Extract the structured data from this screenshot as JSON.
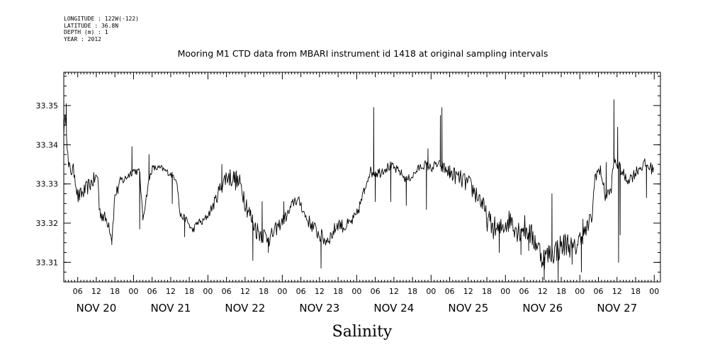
{
  "metadata": [
    "LONGITUDE : 122W(-122)",
    "LATITUDE : 36.8N",
    "DEPTH (m) : 1",
    "YEAR : 2012"
  ],
  "chart_data": {
    "type": "line",
    "title": "Mooring M1 CTD data from MBARI instrument id 1418 at original sampling intervals",
    "xlabel": "Salinity",
    "ylabel": "",
    "ylim": [
      33.305,
      33.3585
    ],
    "xlim_hours": [
      1.5,
      194
    ],
    "x_unit": "hours since NOV 20 00:00 (2012)",
    "yticks": [
      33.31,
      33.32,
      33.33,
      33.34,
      33.35
    ],
    "ytick_labels": [
      "33.31",
      "33.32",
      "33.33",
      "33.34",
      "33.35"
    ],
    "hour_tick_labels": [
      "06",
      "12",
      "18",
      "00"
    ],
    "day_labels": [
      {
        "label": "NOV 20",
        "hour": 12
      },
      {
        "label": "NOV 21",
        "hour": 36
      },
      {
        "label": "NOV 22",
        "hour": 60
      },
      {
        "label": "NOV 23",
        "hour": 84
      },
      {
        "label": "NOV 24",
        "hour": 108
      },
      {
        "label": "NOV 25",
        "hour": 132
      },
      {
        "label": "NOV 26",
        "hour": 156
      },
      {
        "label": "NOV 27",
        "hour": 180
      }
    ],
    "grid": false,
    "series": [
      {
        "noise_profile": [
          [
            1.5,
            0.002
          ],
          [
            12,
            0.002
          ],
          [
            18,
            0.0015
          ],
          [
            24,
            0.001
          ],
          [
            36,
            0.0008
          ],
          [
            48,
            0.001
          ],
          [
            54,
            0.0025
          ],
          [
            60,
            0.003
          ],
          [
            66,
            0.0025
          ],
          [
            72,
            0.0015
          ],
          [
            78,
            0.0015
          ],
          [
            84,
            0.002
          ],
          [
            90,
            0.0018
          ],
          [
            96,
            0.0015
          ],
          [
            102,
            0.0015
          ],
          [
            108,
            0.0012
          ],
          [
            114,
            0.001
          ],
          [
            120,
            0.0012
          ],
          [
            126,
            0.002
          ],
          [
            132,
            0.0025
          ],
          [
            138,
            0.003
          ],
          [
            144,
            0.003
          ],
          [
            150,
            0.0035
          ],
          [
            156,
            0.003
          ],
          [
            162,
            0.0035
          ],
          [
            168,
            0.0025
          ],
          [
            174,
            0.002
          ],
          [
            180,
            0.0015
          ],
          [
            194,
            0.0015
          ]
        ],
        "anchors": [
          [
            1.5,
            33.344
          ],
          [
            2.2,
            33.347
          ],
          [
            3,
            33.334
          ],
          [
            5,
            33.333
          ],
          [
            6,
            33.3265
          ],
          [
            8,
            33.328
          ],
          [
            10,
            33.33
          ],
          [
            12.5,
            33.332
          ],
          [
            13,
            33.323
          ],
          [
            14,
            33.322
          ],
          [
            16,
            33.32
          ],
          [
            17,
            33.316
          ],
          [
            18,
            33.327
          ],
          [
            20,
            33.331
          ],
          [
            21,
            33.331
          ],
          [
            22,
            33.332
          ],
          [
            24,
            33.3335
          ],
          [
            26,
            33.333
          ],
          [
            27,
            33.321
          ],
          [
            29,
            33.331
          ],
          [
            30,
            33.334
          ],
          [
            33,
            33.334
          ],
          [
            35,
            33.333
          ],
          [
            37,
            33.332
          ],
          [
            38,
            33.331
          ],
          [
            39,
            33.322
          ],
          [
            41,
            33.321
          ],
          [
            43,
            33.318
          ],
          [
            45,
            33.3205
          ],
          [
            46,
            33.32
          ],
          [
            48,
            33.322
          ],
          [
            50,
            33.325
          ],
          [
            52,
            33.329
          ],
          [
            54,
            33.332
          ],
          [
            56,
            33.3315
          ],
          [
            57,
            33.331
          ],
          [
            59,
            33.329
          ],
          [
            60,
            33.326
          ],
          [
            62,
            33.321
          ],
          [
            64,
            33.318
          ],
          [
            66,
            33.317
          ],
          [
            68,
            33.316
          ],
          [
            70,
            33.3185
          ],
          [
            72,
            33.3205
          ],
          [
            74,
            33.3225
          ],
          [
            76,
            33.326
          ],
          [
            78,
            33.325
          ],
          [
            79,
            33.3225
          ],
          [
            80,
            33.321
          ],
          [
            82,
            33.319
          ],
          [
            84,
            33.317
          ],
          [
            86,
            33.3155
          ],
          [
            88,
            33.317
          ],
          [
            90,
            33.32
          ],
          [
            92,
            33.319
          ],
          [
            94,
            33.32
          ],
          [
            96,
            33.322
          ],
          [
            98,
            33.327
          ],
          [
            100,
            33.333
          ],
          [
            102,
            33.333
          ],
          [
            103.5,
            33.333
          ],
          [
            105,
            33.334
          ],
          [
            107,
            33.3345
          ],
          [
            110,
            33.333
          ],
          [
            112,
            33.331
          ],
          [
            114,
            33.332
          ],
          [
            116,
            33.334
          ],
          [
            118,
            33.335
          ],
          [
            120,
            33.334
          ],
          [
            122,
            33.335
          ],
          [
            124,
            33.334
          ],
          [
            126,
            33.333
          ],
          [
            128,
            33.332
          ],
          [
            130,
            33.331
          ],
          [
            132,
            33.33
          ],
          [
            134,
            33.328
          ],
          [
            136,
            33.326
          ],
          [
            138,
            33.321
          ],
          [
            140,
            33.319
          ],
          [
            142,
            33.318
          ],
          [
            144,
            33.32
          ],
          [
            146,
            33.321
          ],
          [
            148,
            33.318
          ],
          [
            150,
            33.319
          ],
          [
            152,
            33.317
          ],
          [
            154,
            33.315
          ],
          [
            156,
            33.311
          ],
          [
            158,
            33.312
          ],
          [
            160,
            33.313
          ],
          [
            162,
            33.314
          ],
          [
            164,
            33.315
          ],
          [
            166,
            33.313
          ],
          [
            168,
            33.316
          ],
          [
            170,
            33.318
          ],
          [
            172,
            33.322
          ],
          [
            173,
            33.333
          ],
          [
            175,
            33.333
          ],
          [
            176,
            33.327
          ],
          [
            178,
            33.328
          ],
          [
            179,
            33.336
          ],
          [
            181,
            33.334
          ],
          [
            183,
            33.331
          ],
          [
            185,
            33.332
          ],
          [
            187,
            33.334
          ],
          [
            189,
            33.335
          ],
          [
            191,
            33.334
          ],
          [
            192,
            33.334
          ]
        ],
        "spikes": [
          [
            2.3,
            33.3505
          ],
          [
            17.0,
            33.3145
          ],
          [
            19.0,
            33.3275
          ],
          [
            23.5,
            33.3395
          ],
          [
            26.0,
            33.3185
          ],
          [
            29.0,
            33.3375
          ],
          [
            36.5,
            33.325
          ],
          [
            40.5,
            33.3165
          ],
          [
            52.5,
            33.335
          ],
          [
            62.5,
            33.3105
          ],
          [
            65.5,
            33.3255
          ],
          [
            67.5,
            33.3125
          ],
          [
            72.5,
            33.3255
          ],
          [
            84.5,
            33.3085
          ],
          [
            98.5,
            33.3275
          ],
          [
            101.5,
            33.3495
          ],
          [
            102.0,
            33.3255
          ],
          [
            107.0,
            33.3255
          ],
          [
            112.0,
            33.3245
          ],
          [
            118.5,
            33.3235
          ],
          [
            119.0,
            33.339
          ],
          [
            123.0,
            33.3475
          ],
          [
            123.5,
            33.3495
          ],
          [
            126.0,
            33.3315
          ],
          [
            136.5,
            33.3255
          ],
          [
            142.0,
            33.3125
          ],
          [
            149.0,
            33.312
          ],
          [
            151.5,
            33.313
          ],
          [
            156.5,
            33.3055
          ],
          [
            159.0,
            33.3275
          ],
          [
            161.0,
            33.3055
          ],
          [
            165.5,
            33.3095
          ],
          [
            168.5,
            33.3075
          ],
          [
            169.0,
            33.321
          ],
          [
            176.5,
            33.3355
          ],
          [
            179.0,
            33.3515
          ],
          [
            180.2,
            33.3445
          ],
          [
            180.5,
            33.31
          ],
          [
            181.0,
            33.317
          ],
          [
            189.5,
            33.3265
          ]
        ]
      }
    ]
  }
}
